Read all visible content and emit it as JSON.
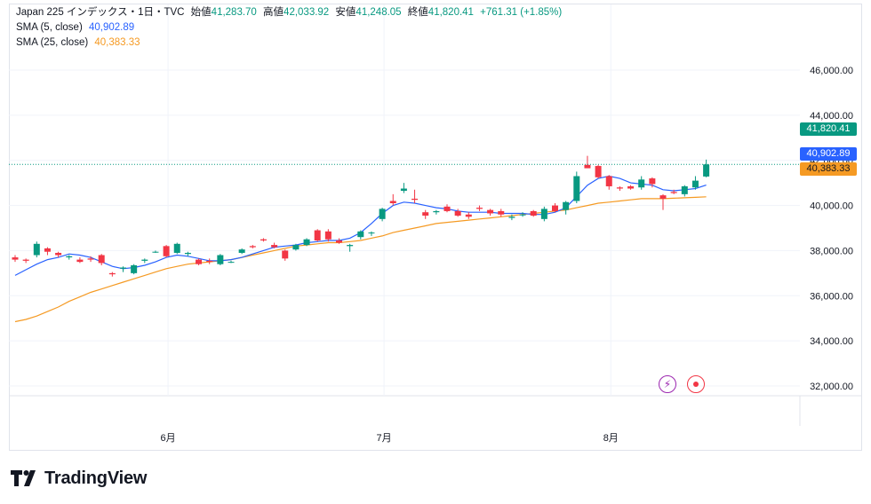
{
  "legend": {
    "symbol": "Japan 225 インデックス・1日・TVC",
    "o_label": "始値",
    "o": "41,283.70",
    "h_label": "高値",
    "h": "42,033.92",
    "l_label": "安値",
    "l": "41,248.05",
    "c_label": "終値",
    "c": "41,820.41",
    "change": "+761.31 (+1.85%)",
    "sma5_label": "SMA (5, close)",
    "sma5_value": "40,902.89",
    "sma25_label": "SMA (25, close)",
    "sma25_value": "40,383.33"
  },
  "price_tags": {
    "last": "41,820.41",
    "sma5": "40,902.89",
    "sma25": "40,383.33"
  },
  "brand": {
    "name": "TradingView"
  },
  "icons": [
    "lightning-icon",
    "record-icon"
  ],
  "colors": {
    "up": "#089981",
    "down": "#f23645",
    "sma5": "#2962ff",
    "sma25": "#f59a23"
  },
  "chart_data": {
    "type": "candlestick",
    "title": "Japan 225 インデックス・1日・TVC",
    "y_ticks": [
      "46,000.00",
      "44,000.00",
      "42,000.00",
      "40,000.00",
      "38,000.00",
      "36,000.00",
      "34,000.00",
      "32,000.00"
    ],
    "y_tick_values": [
      46000,
      44000,
      42000,
      40000,
      38000,
      36000,
      34000,
      32000
    ],
    "ylim": [
      31600,
      46400
    ],
    "x_ticks": [
      {
        "label": "6月",
        "index": 14
      },
      {
        "label": "7月",
        "index": 34
      },
      {
        "label": "8月",
        "index": 55
      }
    ],
    "grid": true,
    "last_price": 41820.41,
    "candles": [
      [
        37700,
        37800,
        37500,
        37600
      ],
      [
        37600,
        37650,
        37450,
        37550
      ],
      [
        37800,
        38400,
        37700,
        38300
      ],
      [
        38100,
        38150,
        37800,
        37950
      ],
      [
        37900,
        37950,
        37700,
        37800
      ],
      [
        37700,
        37800,
        37600,
        37750
      ],
      [
        37600,
        37700,
        37450,
        37500
      ],
      [
        37650,
        37750,
        37500,
        37600
      ],
      [
        37800,
        37850,
        37350,
        37450
      ],
      [
        37000,
        37050,
        36850,
        36950
      ],
      [
        37200,
        37300,
        37050,
        37250
      ],
      [
        37000,
        37400,
        36950,
        37350
      ],
      [
        37550,
        37650,
        37450,
        37600
      ],
      [
        37950,
        38000,
        37900,
        37950
      ],
      [
        38200,
        38250,
        37700,
        37750
      ],
      [
        37900,
        38350,
        37850,
        38300
      ],
      [
        37850,
        37950,
        37750,
        37900
      ],
      [
        37600,
        37650,
        37350,
        37400
      ],
      [
        37550,
        37650,
        37400,
        37500
      ],
      [
        37400,
        37850,
        37350,
        37800
      ],
      [
        37500,
        37550,
        37450,
        37500
      ],
      [
        37900,
        38100,
        37850,
        38050
      ],
      [
        38200,
        38250,
        38100,
        38150
      ],
      [
        38500,
        38550,
        38400,
        38450
      ],
      [
        38250,
        38350,
        38100,
        38150
      ],
      [
        38000,
        38050,
        37550,
        37650
      ],
      [
        38050,
        38300,
        38000,
        38250
      ],
      [
        38250,
        38550,
        38200,
        38500
      ],
      [
        38900,
        38950,
        38400,
        38450
      ],
      [
        38850,
        38950,
        38400,
        38500
      ],
      [
        38450,
        38550,
        38300,
        38350
      ],
      [
        38200,
        38300,
        37950,
        38250
      ],
      [
        38600,
        38900,
        38500,
        38850
      ],
      [
        38800,
        38850,
        38650,
        38800
      ],
      [
        39400,
        39900,
        39300,
        39850
      ],
      [
        40200,
        40500,
        40000,
        40100
      ],
      [
        40650,
        41000,
        40550,
        40750
      ],
      [
        40300,
        40700,
        40100,
        40250
      ],
      [
        39700,
        39800,
        39400,
        39550
      ],
      [
        39700,
        39800,
        39600,
        39750
      ],
      [
        39950,
        40050,
        39700,
        39750
      ],
      [
        39750,
        39850,
        39500,
        39550
      ],
      [
        39600,
        39700,
        39400,
        39500
      ],
      [
        39900,
        40000,
        39750,
        39850
      ],
      [
        39800,
        39850,
        39550,
        39650
      ],
      [
        39750,
        39850,
        39500,
        39600
      ],
      [
        39450,
        39600,
        39350,
        39500
      ],
      [
        39600,
        39700,
        39500,
        39600
      ],
      [
        39750,
        39800,
        39500,
        39550
      ],
      [
        39400,
        39950,
        39300,
        39850
      ],
      [
        40000,
        40100,
        39700,
        39750
      ],
      [
        39800,
        40200,
        39600,
        40150
      ],
      [
        40200,
        41500,
        40100,
        41300
      ],
      [
        41800,
        42200,
        41700,
        41650
      ],
      [
        41750,
        41800,
        41200,
        41250
      ],
      [
        41300,
        41350,
        40700,
        40850
      ],
      [
        40800,
        40850,
        40650,
        40750
      ],
      [
        40850,
        40900,
        40700,
        40750
      ],
      [
        40800,
        41300,
        40700,
        41150
      ],
      [
        41200,
        41250,
        40800,
        40950
      ],
      [
        40450,
        40500,
        39800,
        40300
      ],
      [
        40600,
        40700,
        40500,
        40550
      ],
      [
        40500,
        40900,
        40400,
        40850
      ],
      [
        40800,
        41300,
        40700,
        41100
      ],
      [
        41283.7,
        42033.92,
        41248.05,
        41820.41
      ]
    ],
    "series": [
      {
        "name": "SMA (5, close)",
        "values": [
          36900,
          37150,
          37400,
          37600,
          37700,
          37850,
          37800,
          37700,
          37500,
          37300,
          37200,
          37250,
          37350,
          37500,
          37700,
          37800,
          37750,
          37650,
          37550,
          37550,
          37600,
          37700,
          37850,
          38000,
          38150,
          38200,
          38250,
          38350,
          38400,
          38450,
          38450,
          38550,
          38800,
          39200,
          39650,
          40000,
          40150,
          40100,
          40000,
          39900,
          39850,
          39750,
          39700,
          39700,
          39700,
          39650,
          39650,
          39650,
          39600,
          39600,
          39700,
          39900,
          40400,
          40900,
          41200,
          41300,
          41200,
          41000,
          40950,
          40900,
          40700,
          40650,
          40700,
          40750,
          40902.89
        ]
      },
      {
        "name": "SMA (25, close)",
        "values": [
          34850,
          34950,
          35100,
          35300,
          35500,
          35750,
          35950,
          36150,
          36300,
          36450,
          36600,
          36750,
          36900,
          37050,
          37200,
          37300,
          37400,
          37450,
          37500,
          37550,
          37600,
          37700,
          37800,
          37900,
          38000,
          38100,
          38200,
          38250,
          38300,
          38350,
          38350,
          38400,
          38450,
          38550,
          38650,
          38800,
          38900,
          39000,
          39100,
          39200,
          39250,
          39300,
          39350,
          39400,
          39450,
          39500,
          39550,
          39600,
          39650,
          39700,
          39750,
          39800,
          39900,
          40000,
          40100,
          40150,
          40200,
          40250,
          40300,
          40300,
          40300,
          40320,
          40340,
          40360,
          40383.33
        ]
      }
    ]
  }
}
